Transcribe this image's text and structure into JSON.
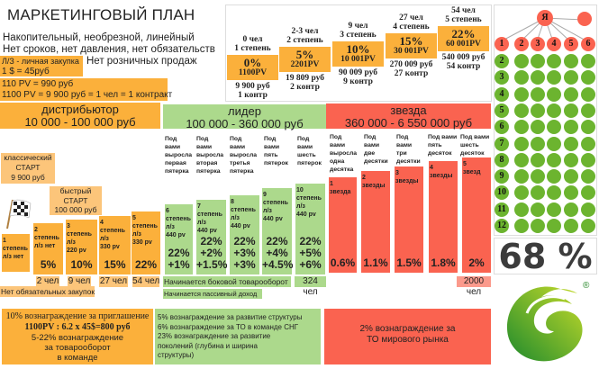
{
  "header": {
    "title": "МАРКЕТИНГОВЫЙ ПЛАН",
    "line1": "Накопительный, необрезной, линейный",
    "line2": "Нет сроков, нет давления, нет обязательств",
    "personal_purchase": "Л/З - личная закупка",
    "rate": "1 $ = 45руб",
    "no_retail": "Нет розничных продаж",
    "pv1": "110 PV = 990 руб",
    "pv2": "1100 PV = 9 900 руб = 1 чел = 1 контракт"
  },
  "steps": [
    {
      "top": "0 чел\n1 степень",
      "pct": "0%",
      "pv": "1100PV",
      "bottom": "9 900 руб\n1 контр"
    },
    {
      "top": "2-3 чел\n2 степень",
      "pct": "5%",
      "pv": "2201PV",
      "bottom": "19 809 руб\n2 контр"
    },
    {
      "top": "9 чел\n3 степень",
      "pct": "10%",
      "pv": "10 001PV",
      "bottom": "90 009 руб\n9 контр"
    },
    {
      "top": "27 чел\n4 степень",
      "pct": "15%",
      "pv": "30 001PV",
      "bottom": "270 009 руб\n27 контр"
    },
    {
      "top": "54 чел\n5 степень",
      "pct": "22%",
      "pv": "60 001PV",
      "bottom": "540 009 руб\n54 контр"
    }
  ],
  "distributor": {
    "title": "дистрибьютор",
    "range": "10 000 - 100 000 руб",
    "classic_start": "классический\nСТАРТ\n9 900 руб",
    "fast_start": "быстрый\nСТАРТ\n100 000 руб",
    "bars": [
      {
        "text": "1\nстепень\nл/з нет",
        "pct": ""
      },
      {
        "text": "2\nстепень\nл/з нет",
        "pct": "5%"
      },
      {
        "text": "3\nстепень\nл/з\n220 pv",
        "pct": "10%"
      },
      {
        "text": "4\nстепень\nл/з\n330 pv",
        "pct": "15%"
      },
      {
        "text": "5\nстепень\nл/з\n330 pv",
        "pct": "22%"
      }
    ],
    "counts": [
      "2 чел",
      "9 чел",
      "27 чел",
      "54 чел"
    ],
    "note": "Нет обязательных закупок"
  },
  "leader": {
    "title": "лидер",
    "range": "100 000 - 360 000 руб",
    "columns": [
      "Под\nвами\nвыросла\nпервая\nпятерка",
      "Под\nвами\nвыросла\nвторая\nпятерка",
      "Под\nвами\nвыросла\nтретья\nпятерка",
      "Под\nвами\nпять\nпятерок",
      "Под\nвами\nшесть\nпятерок"
    ],
    "bars": [
      {
        "text": "6\nстепень\nл/з\n440 pv",
        "pct": "22%\n+1%"
      },
      {
        "text": "7\nстепень\nл/з\n440 pv",
        "pct": "22%\n+2%\n+1.5%"
      },
      {
        "text": "8\nстепень\nл/з\n440 pv",
        "pct": "22%\n+3%\n+3%"
      },
      {
        "text": "9\nстепень\nл/з\n440 pv",
        "pct": "22%\n+4%\n+4.5%"
      },
      {
        "text": "10\nстепень\nл/з\n440 pv",
        "pct": "22%\n+5%\n+6%"
      }
    ],
    "note1": "Начинается боковой товарооборот",
    "count": "324 чел",
    "note2": "Начинается пассивный доход"
  },
  "star": {
    "title": "звезда",
    "range": "360 000 - 6 550 000 руб",
    "columns": [
      "Под\nвами\nвыросла\nодна\nдесятка",
      "Под\nвами\nдве\nдесятки",
      "Под\nвами\nтри\nдесятки",
      "Под вами\nпять\nдесяток",
      "Под вами\nшесть\nдесяток"
    ],
    "bars": [
      {
        "text": "1\nзвезда",
        "pct": "0.6%"
      },
      {
        "text": "2\nзвезды",
        "pct": "1.1%"
      },
      {
        "text": "3\nзвезды",
        "pct": "1.5%"
      },
      {
        "text": "4\nзвезды",
        "pct": "1.8%"
      },
      {
        "text": "5\nзвезд",
        "pct": "2%"
      }
    ],
    "count": "2000 чел"
  },
  "rewards": {
    "distributor": {
      "l1": "10% вознаграждение за приглашение",
      "l2": "1100PV : 6.2 x 45$=800 руб",
      "l3": "5-22% вознаграждение\nза товарооборот\nв команде"
    },
    "leader": {
      "l1": "5% вознаграждение за развитие структуры",
      "l2": "6% вознаграждение за ТО в команде СНГ",
      "l3": "23% вознаграждение за развитие\nпоколений (глубина и ширина\nструктуры)"
    },
    "star": {
      "l1": "2% вознаграждение за\nТО мирового рынка"
    }
  },
  "tree": {
    "root": "Я",
    "first_row": [
      "1",
      "2",
      "3",
      "4",
      "5",
      "6"
    ],
    "row_labels": [
      "2",
      "3",
      "4",
      "5",
      "6",
      "7",
      "8",
      "9",
      "10",
      "11",
      "12"
    ]
  },
  "percent": "68 %",
  "logo": {
    "mark": "®"
  },
  "colors": {
    "orange": "#fbb03b",
    "green": "#acd98c",
    "red": "#fa6350",
    "circle_green": "#6cb42f"
  }
}
